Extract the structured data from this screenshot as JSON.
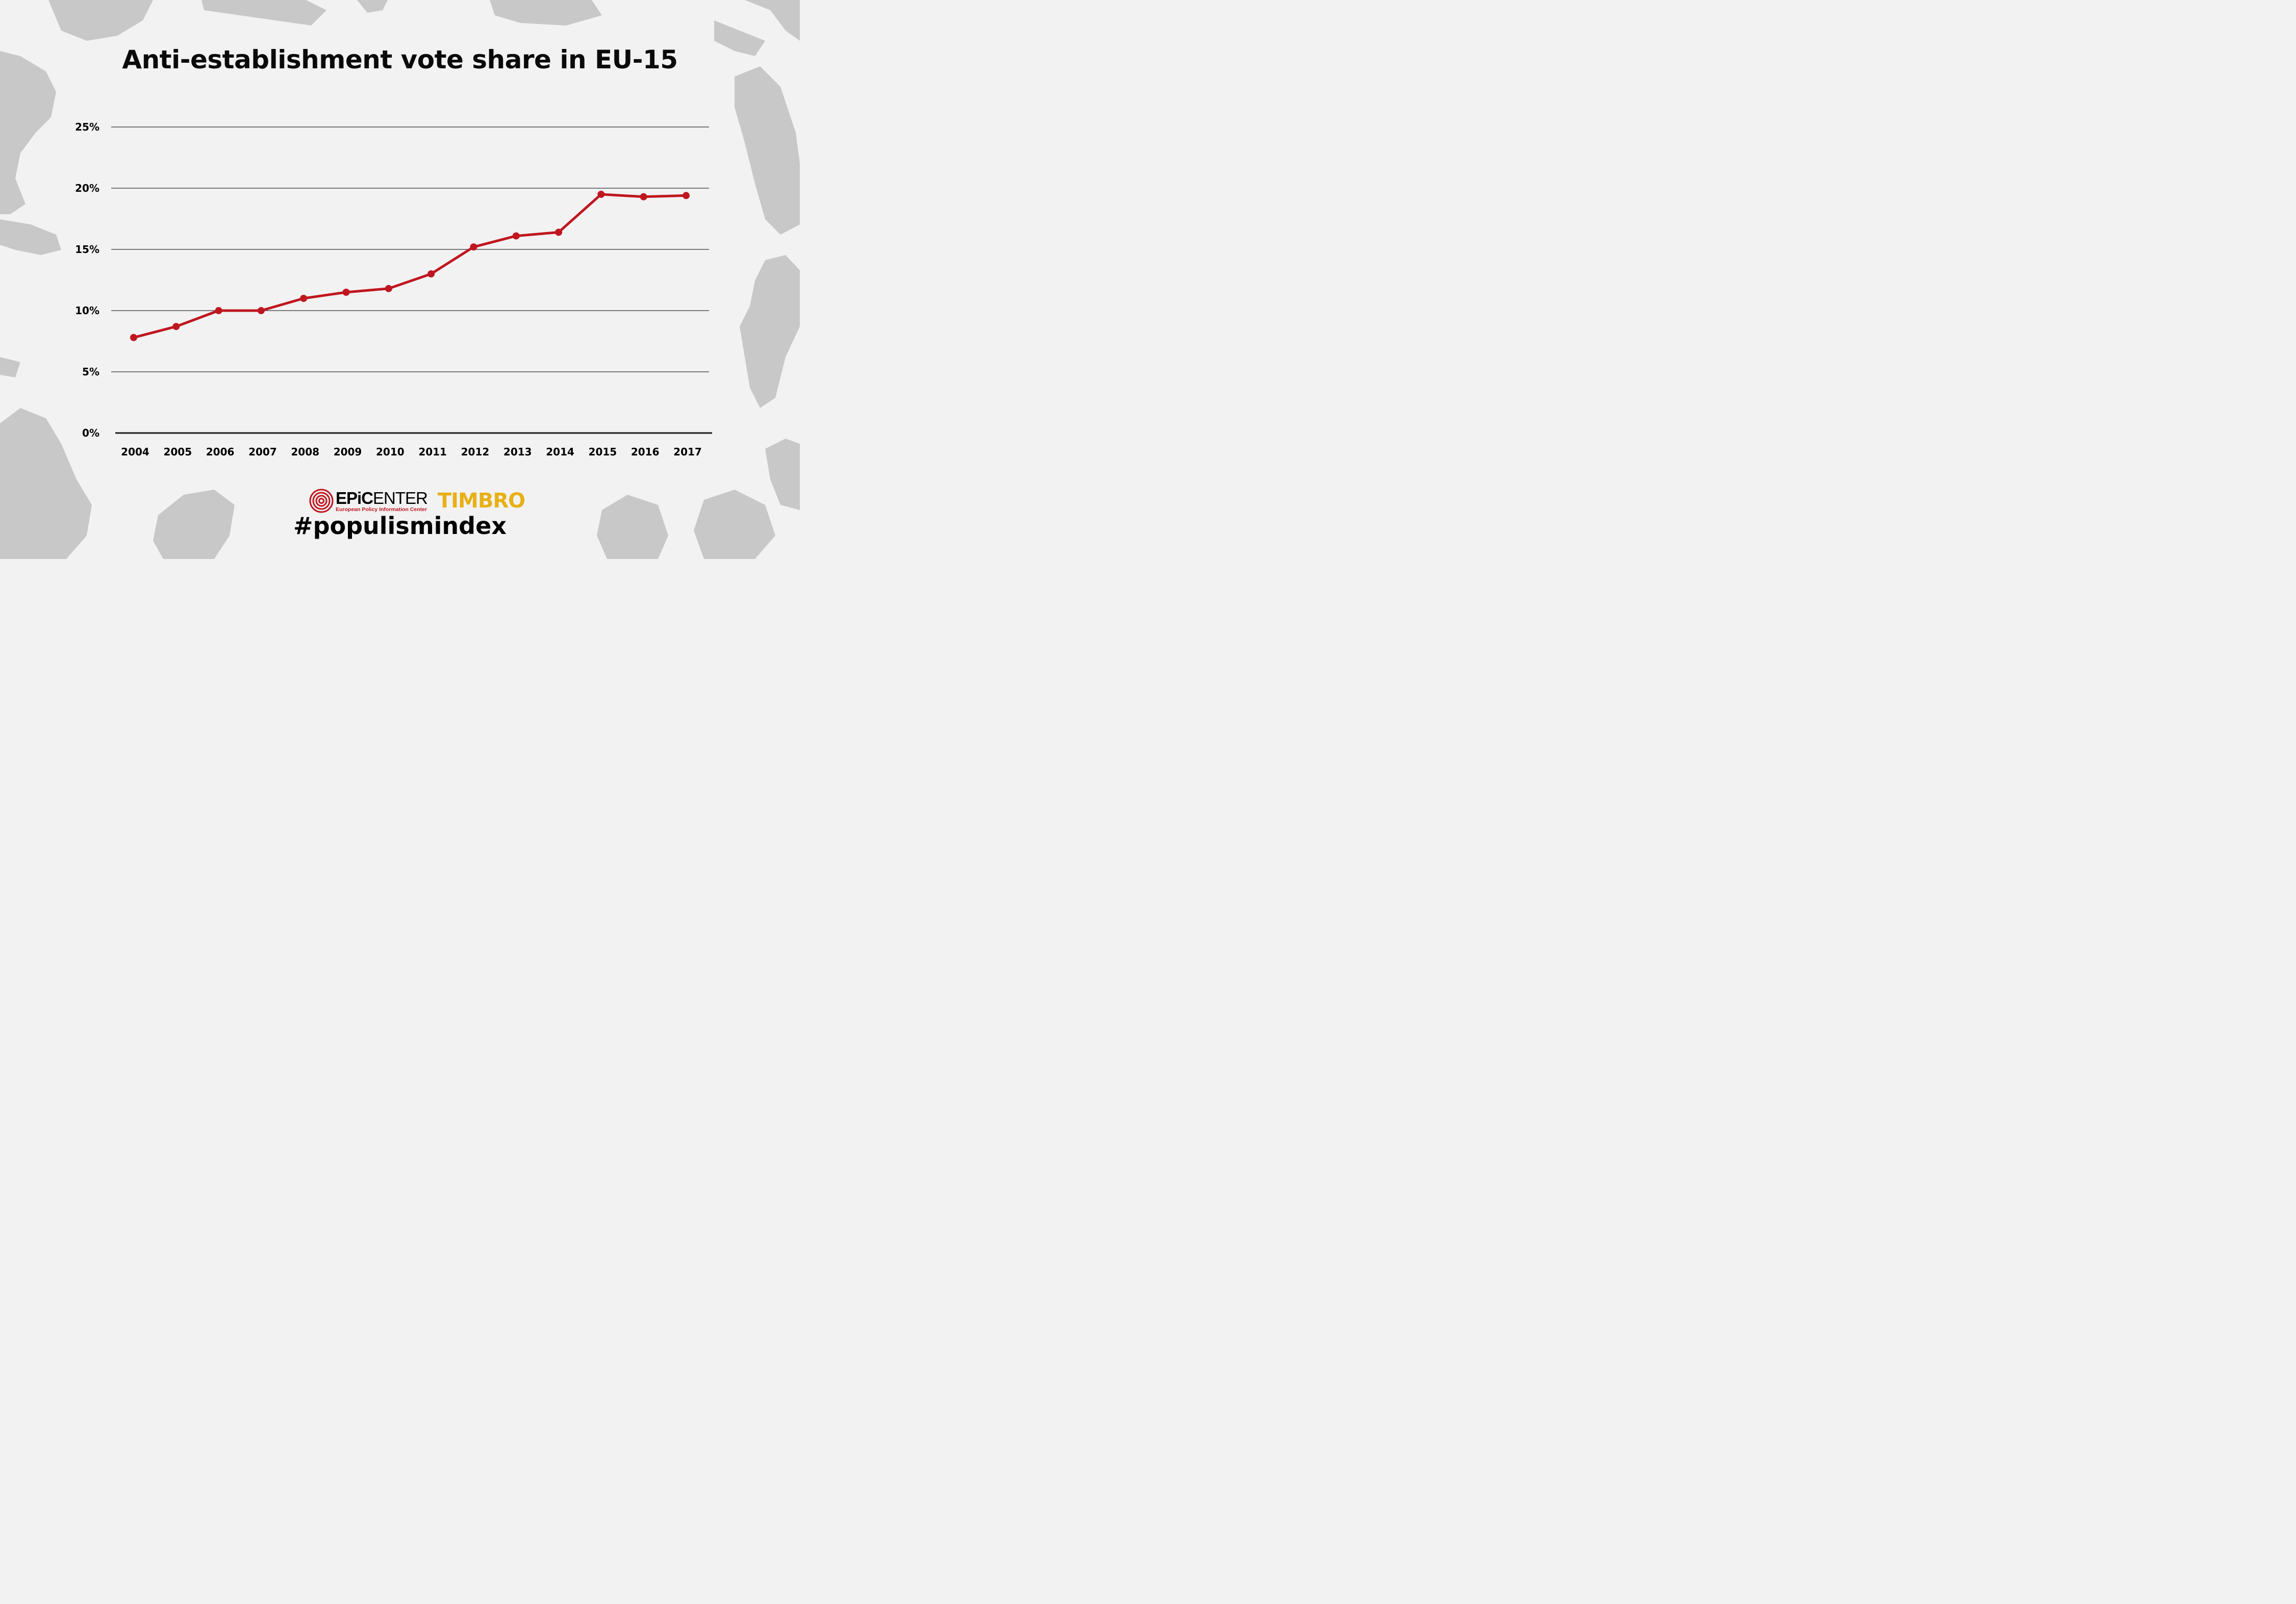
{
  "title": "Anti-establishment vote share in EU-15",
  "colors": {
    "background": "#f2f2f2",
    "land": "#c8c8c8",
    "line": "#c0161f",
    "grid": "#333333",
    "timbro": "#e8b015"
  },
  "chart_data": {
    "type": "line",
    "title": "Anti-establishment vote share in EU-15",
    "xlabel": "",
    "ylabel": "",
    "categories": [
      "2004",
      "2005",
      "2006",
      "2007",
      "2008",
      "2009",
      "2010",
      "2011",
      "2012",
      "2013",
      "2014",
      "2015",
      "2016",
      "2017"
    ],
    "series": [
      {
        "name": "Anti-establishment vote share",
        "values": [
          7.8,
          8.7,
          10.0,
          10.0,
          11.0,
          11.5,
          11.8,
          13.0,
          15.2,
          16.1,
          16.4,
          19.5,
          19.3,
          19.4
        ]
      }
    ],
    "ylim": [
      0,
      25
    ],
    "yticks": [
      0,
      5,
      10,
      15,
      20,
      25
    ],
    "ytick_labels": [
      "0%",
      "5%",
      "10%",
      "15%",
      "20%",
      "25%"
    ],
    "grid": true,
    "legend": "none"
  },
  "logos": {
    "epicenter_bold": "EPiC",
    "epicenter_rest": "ENTER",
    "epicenter_subtitle": "European Policy Information Center",
    "timbro": "TIMBRO"
  },
  "hashtag": "#populismindex"
}
